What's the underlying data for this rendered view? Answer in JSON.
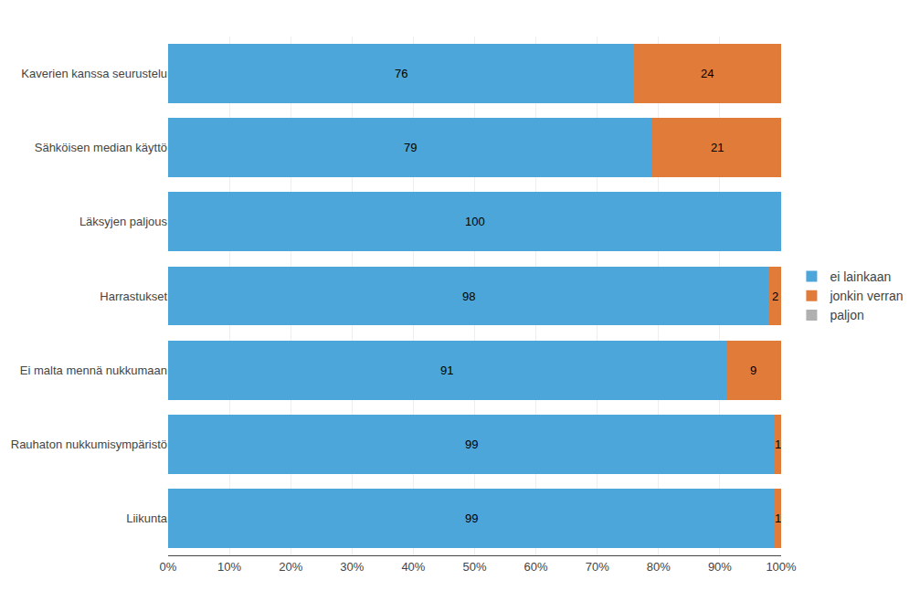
{
  "chart_data": {
    "type": "bar",
    "orientation": "horizontal",
    "stacked": true,
    "categories": [
      "Kaverien kanssa seurustelu",
      "Sähköisen median käyttö",
      "Läksyjen paljous",
      "Harrastukset",
      "Ei malta mennä nukkumaan",
      "Rauhaton nukkumisympäristö",
      "Liikunta"
    ],
    "series": [
      {
        "name": "ei lainkaan",
        "color": "#4DA6D9",
        "values": [
          76,
          79,
          100,
          98,
          91,
          99,
          99
        ]
      },
      {
        "name": "jonkin verran",
        "color": "#E07B39",
        "values": [
          24,
          21,
          0,
          2,
          9,
          1,
          1
        ]
      },
      {
        "name": "paljon",
        "color": "#B0B0B0",
        "values": [
          0,
          0,
          0,
          0,
          0,
          0,
          0
        ]
      }
    ],
    "xlim": [
      0,
      100
    ],
    "xticks": [
      {
        "value": 0,
        "label": "0%"
      },
      {
        "value": 10,
        "label": "10%"
      },
      {
        "value": 20,
        "label": "20%"
      },
      {
        "value": 30,
        "label": "30%"
      },
      {
        "value": 40,
        "label": "40%"
      },
      {
        "value": 50,
        "label": "50%"
      },
      {
        "value": 60,
        "label": "60%"
      },
      {
        "value": 70,
        "label": "70%"
      },
      {
        "value": 80,
        "label": "80%"
      },
      {
        "value": 90,
        "label": "90%"
      },
      {
        "value": 100,
        "label": "100%"
      }
    ],
    "grid": true,
    "legend": "right",
    "data_labels": true
  }
}
